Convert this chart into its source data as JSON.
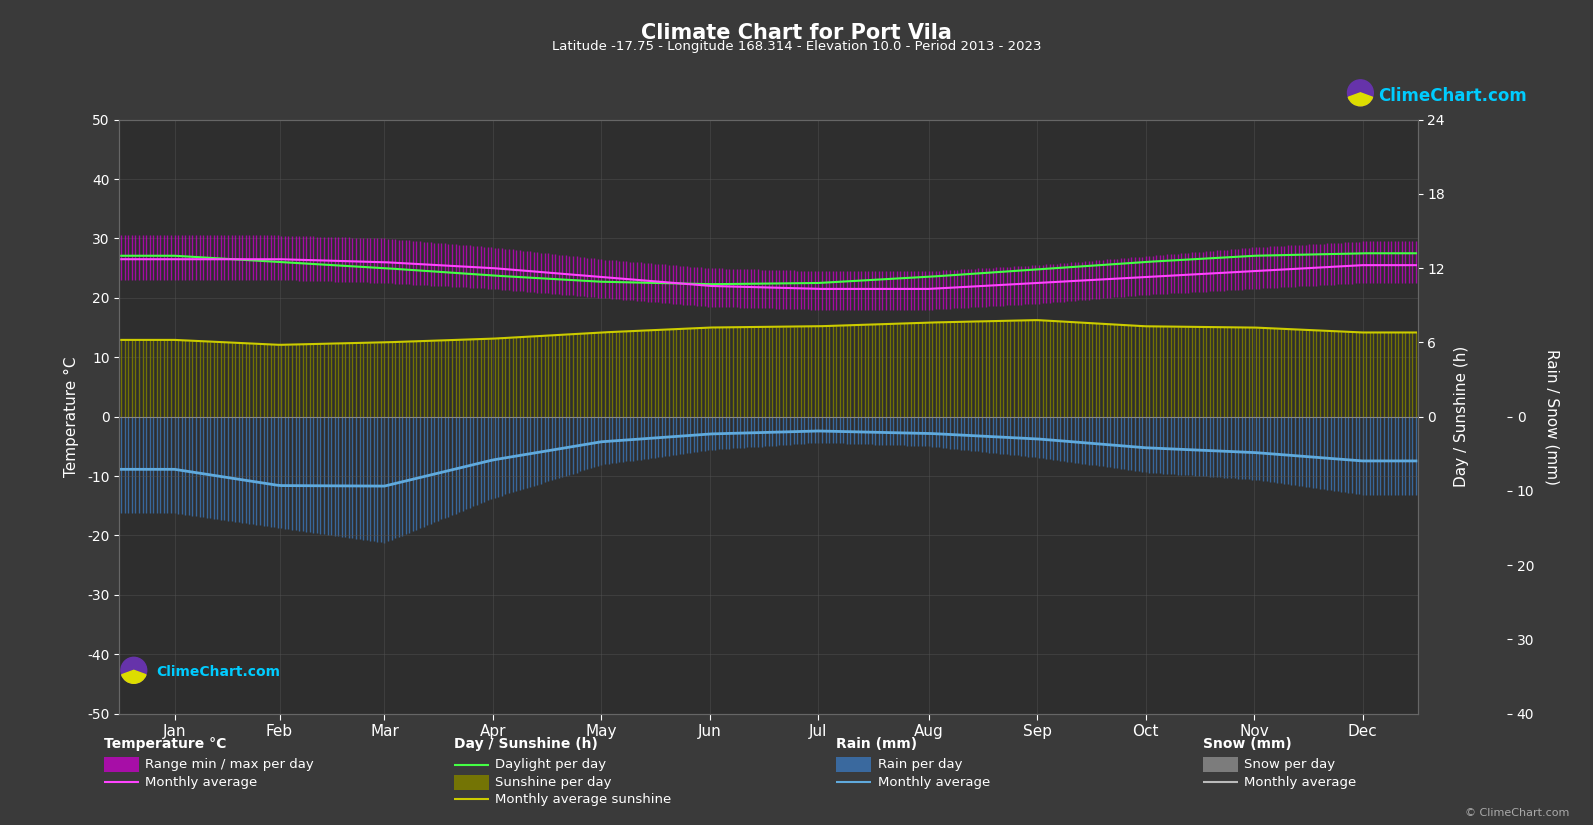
{
  "title": "Climate Chart for Port Vila",
  "subtitle": "Latitude -17.75 - Longitude 168.314 - Elevation 10.0 - Period 2013 - 2023",
  "background_color": "#3a3a3a",
  "plot_bg_color": "#2e2e2e",
  "text_color": "#ffffff",
  "grid_color": "#555555",
  "months": [
    "Jan",
    "Feb",
    "Mar",
    "Apr",
    "May",
    "Jun",
    "Jul",
    "Aug",
    "Sep",
    "Oct",
    "Nov",
    "Dec"
  ],
  "temp_ylim": [
    -50,
    50
  ],
  "sun_ylim": [
    0,
    24
  ],
  "rain_ylim": [
    0,
    40
  ],
  "temp_yticks": [
    -50,
    -40,
    -30,
    -20,
    -10,
    0,
    10,
    20,
    30,
    40,
    50
  ],
  "sun_yticks": [
    0,
    6,
    12,
    18,
    24
  ],
  "rain_yticks": [
    0,
    10,
    20,
    30,
    40
  ],
  "temp_avg": [
    26.5,
    26.5,
    26.0,
    25.0,
    23.5,
    22.0,
    21.5,
    21.5,
    22.5,
    23.5,
    24.5,
    25.5
  ],
  "temp_max_daily": [
    30.5,
    30.5,
    30.0,
    28.5,
    26.5,
    25.0,
    24.5,
    24.5,
    25.5,
    27.0,
    28.5,
    29.5
  ],
  "temp_min_daily": [
    23.0,
    23.0,
    22.5,
    21.5,
    20.0,
    18.5,
    18.0,
    18.0,
    19.0,
    20.5,
    21.5,
    22.5
  ],
  "daylight_h": [
    13.0,
    12.5,
    12.0,
    11.4,
    10.9,
    10.7,
    10.8,
    11.3,
    11.9,
    12.5,
    13.0,
    13.2
  ],
  "sunshine_avg_h": [
    6.2,
    5.8,
    6.0,
    6.3,
    6.8,
    7.2,
    7.3,
    7.6,
    7.8,
    7.3,
    7.2,
    6.8
  ],
  "rain_daily_mm": [
    13.0,
    15.0,
    17.0,
    11.0,
    6.5,
    4.5,
    3.5,
    4.0,
    5.5,
    7.5,
    8.5,
    10.5
  ],
  "rain_monthly_mm": [
    220.0,
    260.0,
    290.0,
    175.0,
    105.0,
    70.0,
    60.0,
    70.0,
    90.0,
    130.0,
    145.0,
    185.0
  ],
  "days_in_month": [
    31,
    28,
    31,
    30,
    31,
    30,
    31,
    31,
    30,
    31,
    30,
    31
  ],
  "temp_bar_color": "#CC00CC",
  "temp_line_color": "#FF44FF",
  "sunshine_bar_color": "#7B7B00",
  "daylight_line_color": "#44FF44",
  "sunshine_line_color": "#CCCC00",
  "rain_bar_color": "#3A72B0",
  "rain_line_color": "#60AADD",
  "snow_bar_color": "#999999",
  "snow_line_color": "#bbbbbb",
  "logo_text": "ClimeChart.com",
  "logo_color": "#00CCFF",
  "watermark": "© ClimeChart.com",
  "ylabel_left": "Temperature °C",
  "ylabel_right1": "Day / Sunshine (h)",
  "ylabel_right2": "Rain / Snow (mm)",
  "legend_col1_header": "Temperature °C",
  "legend_col2_header": "Day / Sunshine (h)",
  "legend_col3_header": "Rain (mm)",
  "legend_col4_header": "Snow (mm)",
  "legend_col1": [
    "Range min / max per day",
    "Monthly average"
  ],
  "legend_col2": [
    "Daylight per day",
    "Sunshine per day",
    "Monthly average sunshine"
  ],
  "legend_col3": [
    "Rain per day",
    "Monthly average"
  ],
  "legend_col4": [
    "Snow per day",
    "Monthly average"
  ]
}
